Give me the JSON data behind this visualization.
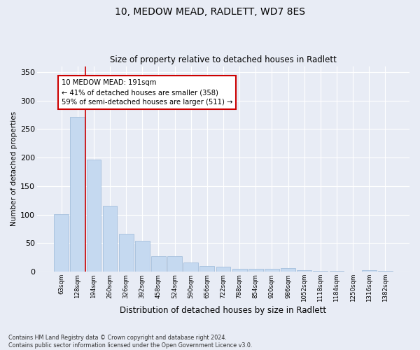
{
  "title": "10, MEDOW MEAD, RADLETT, WD7 8ES",
  "subtitle": "Size of property relative to detached houses in Radlett",
  "xlabel": "Distribution of detached houses by size in Radlett",
  "ylabel": "Number of detached properties",
  "bar_labels": [
    "63sqm",
    "128sqm",
    "194sqm",
    "260sqm",
    "326sqm",
    "392sqm",
    "458sqm",
    "524sqm",
    "590sqm",
    "656sqm",
    "722sqm",
    "788sqm",
    "854sqm",
    "920sqm",
    "986sqm",
    "1052sqm",
    "1118sqm",
    "1184sqm",
    "1250sqm",
    "1316sqm",
    "1382sqm"
  ],
  "bar_values": [
    101,
    271,
    196,
    115,
    66,
    54,
    27,
    27,
    16,
    10,
    9,
    5,
    5,
    5,
    6,
    3,
    2,
    1,
    0,
    3,
    2
  ],
  "bar_color": "#c5d9f0",
  "bar_edgecolor": "#9ab8d8",
  "bg_color": "#e8ecf5",
  "grid_color": "#ffffff",
  "annotation_line_color": "#cc0000",
  "annotation_box_text": "10 MEDOW MEAD: 191sqm\n← 41% of detached houses are smaller (358)\n59% of semi-detached houses are larger (511) →",
  "annotation_box_color": "#cc0000",
  "ylim": [
    0,
    360
  ],
  "yticks": [
    0,
    50,
    100,
    150,
    200,
    250,
    300,
    350
  ],
  "footnote": "Contains HM Land Registry data © Crown copyright and database right 2024.\nContains public sector information licensed under the Open Government Licence v3.0."
}
